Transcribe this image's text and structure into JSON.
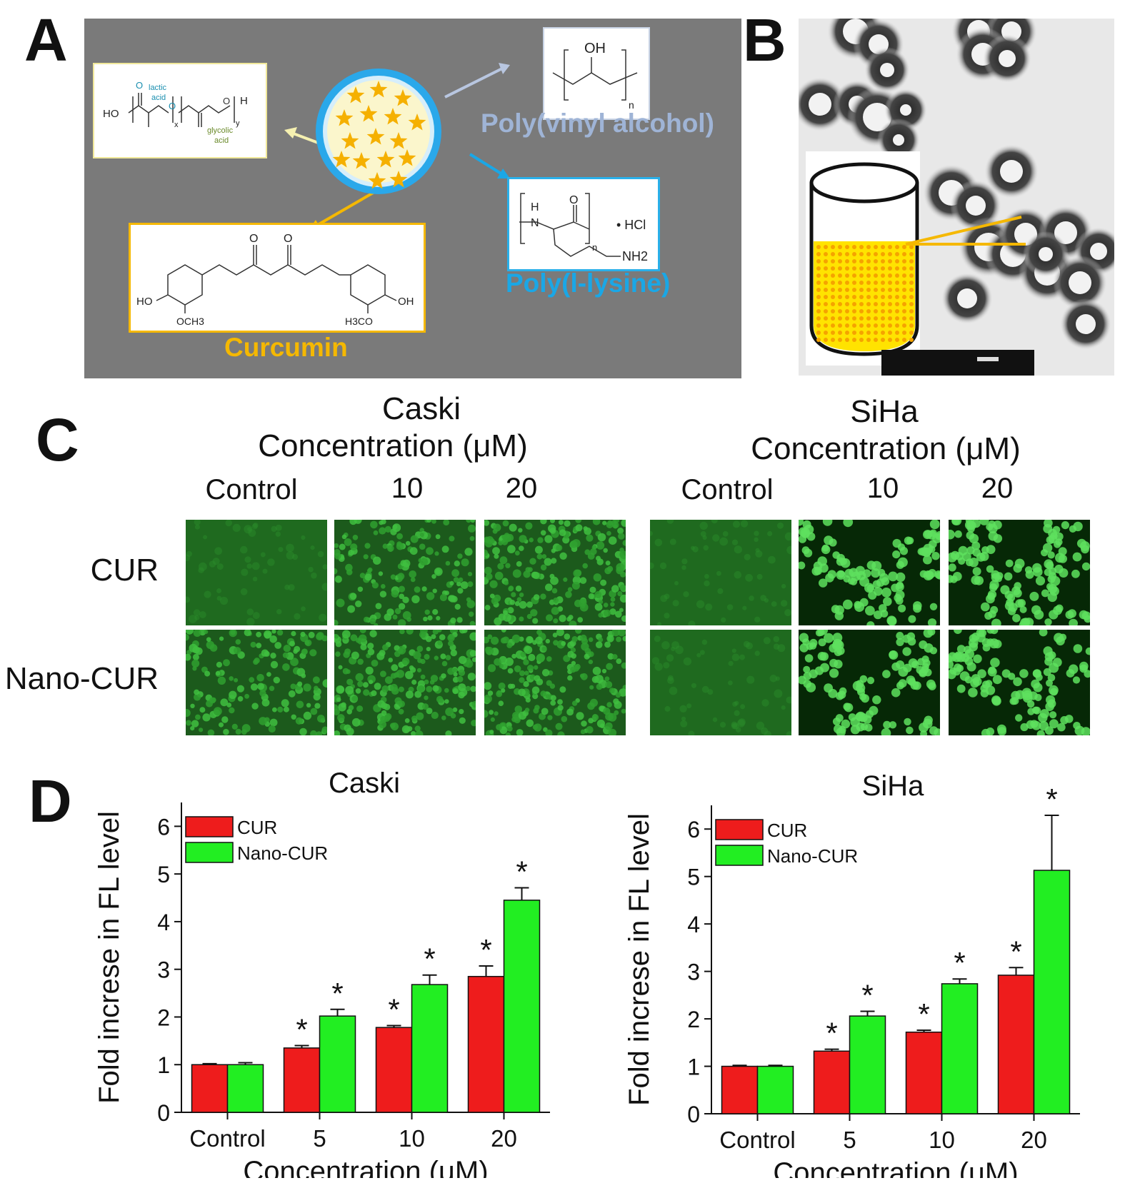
{
  "panels": {
    "A": "A",
    "B": "B",
    "C": "C",
    "D": "D"
  },
  "schematic": {
    "plga_labels": {
      "ho": "HO",
      "h": "H",
      "lactic": "lactic",
      "acid1": "acid",
      "glycolic": "glycolic",
      "acid2": "acid",
      "x": "x",
      "y": "y",
      "o1": "O",
      "o2": "O",
      "o3": "O"
    },
    "pva_oh": "OH",
    "pva_n": "n",
    "pva_caption": "Poly(vinyl alcohol)",
    "pll_h": "H",
    "pll_n_atom": "N",
    "pll_o": "O",
    "pll_hcl": "• HCl",
    "pll_n": "n",
    "pll_nh2": "NH2",
    "pll_caption": "Poly(l-lysine)",
    "cur_o1": "O",
    "cur_o2": "O",
    "cur_ho": "HO",
    "cur_oh": "OH",
    "cur_och3": "OCH3",
    "cur_h3co": "H3CO",
    "cur_caption": "Curcumin",
    "colors": {
      "plga": "#1a8fb0",
      "glycolic": "#6a8a2a",
      "pva": "#9fb4d6",
      "pll": "#1aa7e6",
      "curcumin": "#f5b800",
      "box_border_plga": "#f0e89a",
      "box_border_pva": "#c9d4e6",
      "box_border_pll": "#2ab0ea",
      "box_border_cur": "#f5b800"
    }
  },
  "panelC": {
    "groups": [
      {
        "cell": "Caski",
        "conc": "Concentration (μM)",
        "cols": [
          "Control",
          "10",
          "20"
        ]
      },
      {
        "cell": "SiHa",
        "conc": "Concentration (μM)",
        "cols": [
          "Control",
          "10",
          "20"
        ]
      }
    ],
    "rows": [
      "CUR",
      "Nano-CUR"
    ]
  },
  "chart_data": [
    {
      "type": "bar",
      "title": "Caski",
      "xlabel": "Concentration (μM)",
      "ylabel": "Fold increse in FL level",
      "categories": [
        "Control",
        "5",
        "10",
        "20"
      ],
      "ylim": [
        0,
        6.5
      ],
      "yticks": [
        0,
        1,
        2,
        3,
        4,
        5,
        6
      ],
      "legend": "top-left",
      "series": [
        {
          "name": "CUR",
          "color": "#ee1c1c",
          "values": [
            1.0,
            1.35,
            1.78,
            2.85
          ],
          "errors": [
            0.02,
            0.05,
            0.04,
            0.22
          ],
          "significant": [
            false,
            true,
            true,
            true
          ]
        },
        {
          "name": "Nano-CUR",
          "color": "#22ee22",
          "values": [
            1.0,
            2.02,
            2.68,
            4.45
          ],
          "errors": [
            0.04,
            0.14,
            0.2,
            0.26
          ],
          "significant": [
            false,
            true,
            true,
            true
          ]
        }
      ],
      "marker": "*"
    },
    {
      "type": "bar",
      "title": "SiHa",
      "xlabel": "Concentration (μM)",
      "ylabel": "Fold increse in FL level",
      "categories": [
        "Control",
        "5",
        "10",
        "20"
      ],
      "ylim": [
        0,
        6.5
      ],
      "yticks": [
        0,
        1,
        2,
        3,
        4,
        5,
        6
      ],
      "legend": "top-left",
      "series": [
        {
          "name": "CUR",
          "color": "#ee1c1c",
          "values": [
            1.0,
            1.32,
            1.72,
            2.92
          ],
          "errors": [
            0.02,
            0.04,
            0.04,
            0.16
          ],
          "significant": [
            false,
            true,
            true,
            true
          ]
        },
        {
          "name": "Nano-CUR",
          "color": "#22ee22",
          "values": [
            1.0,
            2.06,
            2.74,
            5.13
          ],
          "errors": [
            0.02,
            0.1,
            0.1,
            1.16
          ],
          "significant": [
            false,
            true,
            true,
            true
          ]
        }
      ],
      "marker": "*"
    }
  ]
}
